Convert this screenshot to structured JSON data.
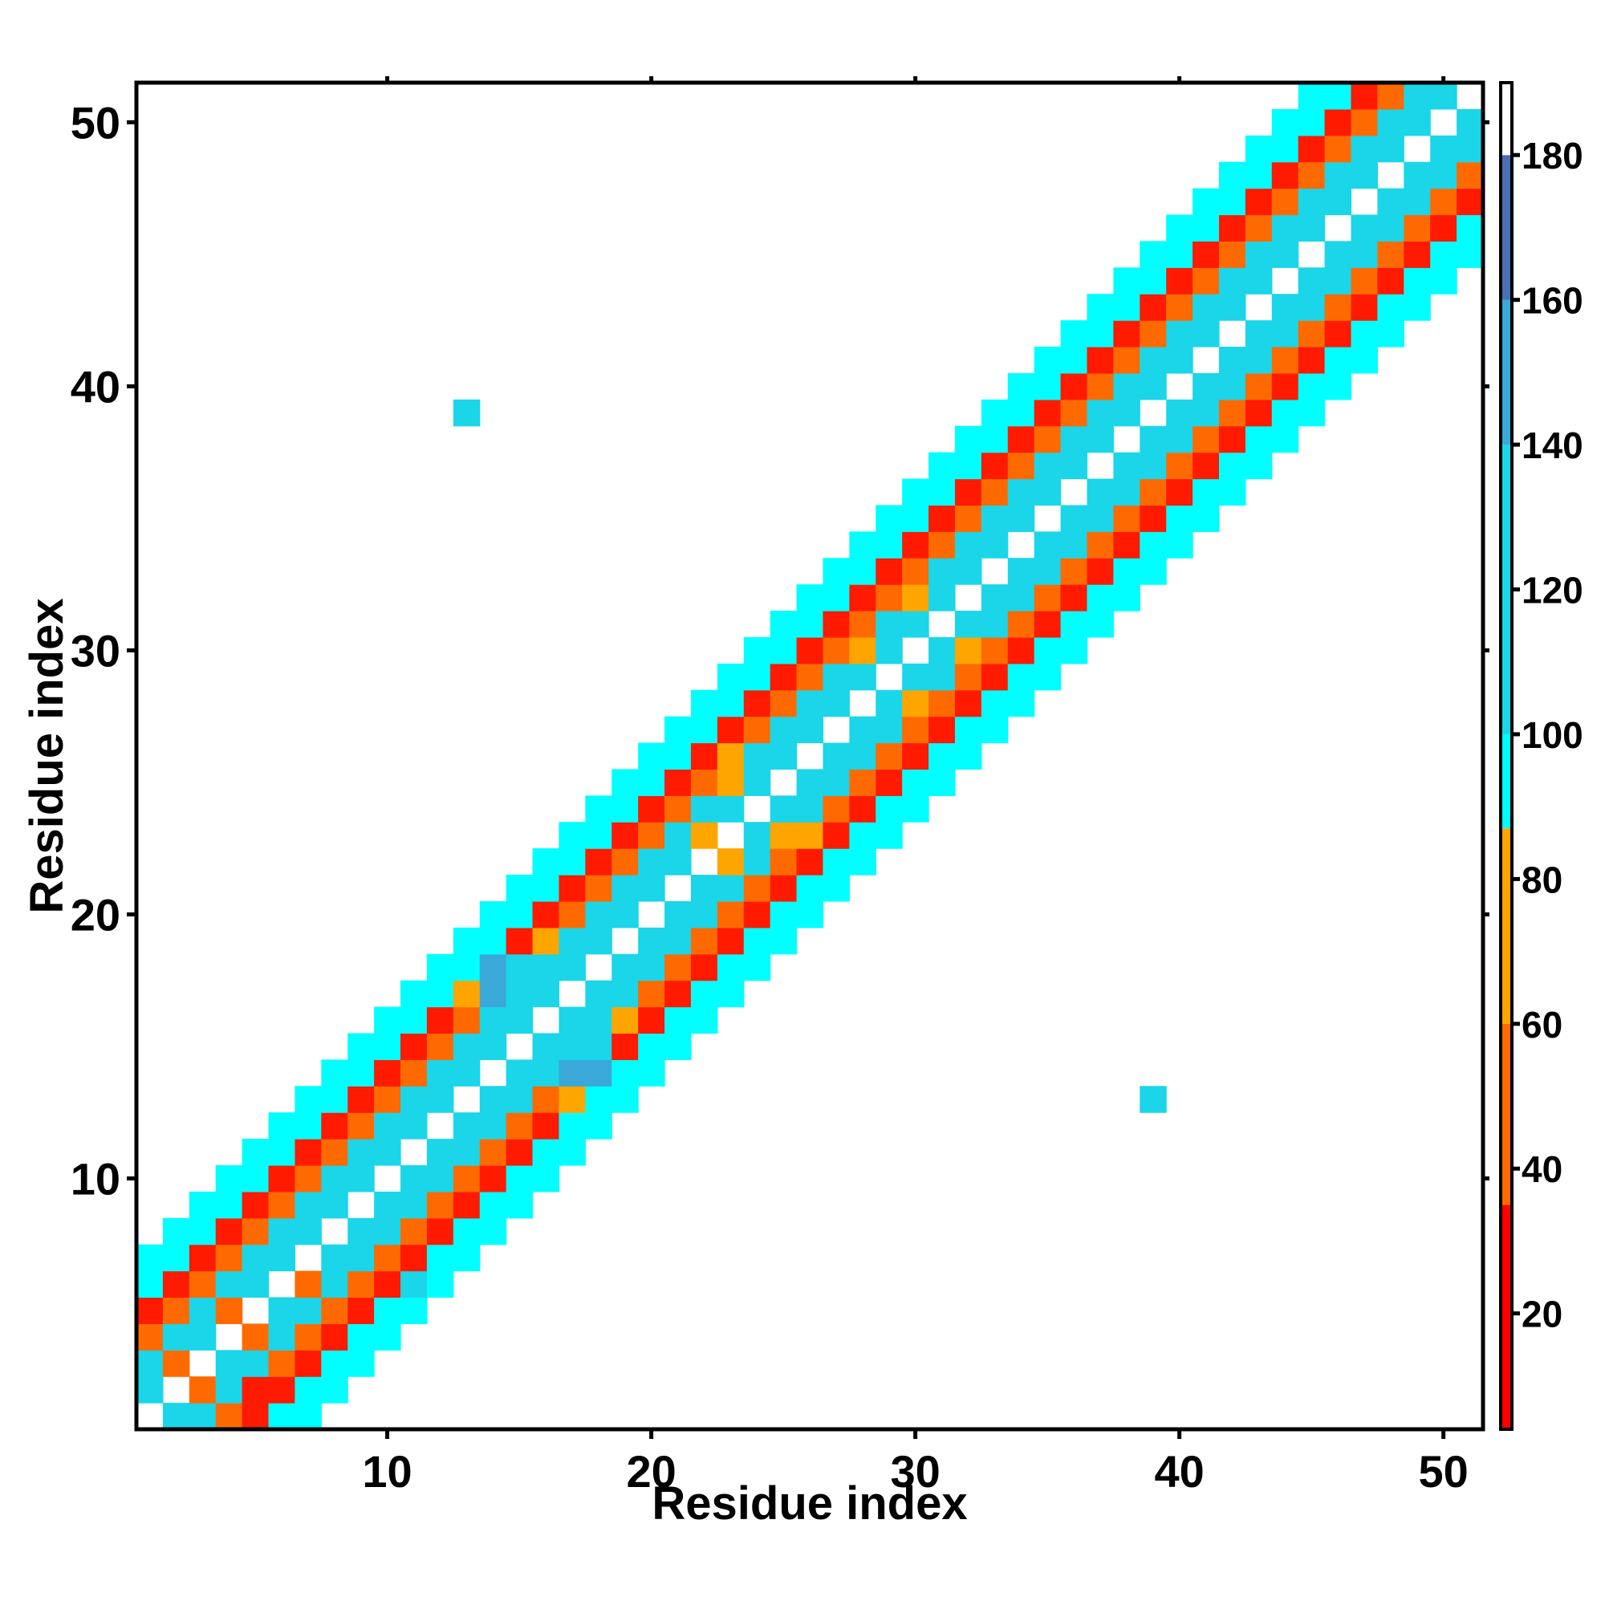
{
  "chart_data": {
    "type": "heatmap",
    "title": "",
    "xlabel": "Residue index",
    "ylabel": "Residue index",
    "xlim": [
      0.5,
      51.5
    ],
    "ylim": [
      0.5,
      51.5
    ],
    "x_ticks": [
      "10",
      "20",
      "30",
      "40",
      "50"
    ],
    "y_ticks": [
      "10",
      "20",
      "30",
      "40",
      "50"
    ],
    "colorbar": {
      "ticks": [
        "20",
        "40",
        "60",
        "80",
        "100",
        "120",
        "140",
        "160",
        "180"
      ],
      "range": [
        4,
        190
      ],
      "bands": [
        {
          "from": 4,
          "to": 35,
          "color": "#ff0000"
        },
        {
          "from": 35,
          "to": 60,
          "color": "#ff6a00"
        },
        {
          "from": 60,
          "to": 87,
          "color": "#ffa500"
        },
        {
          "from": 87,
          "to": 100,
          "color": "#00ffff"
        },
        {
          "from": 100,
          "to": 140,
          "color": "#1ad6e8"
        },
        {
          "from": 140,
          "to": 160,
          "color": "#3aa8d8"
        },
        {
          "from": 160,
          "to": 180,
          "color": "#4a6fb5"
        },
        {
          "from": 180,
          "to": 190,
          "color": "#ffffff"
        }
      ]
    },
    "colors": {
      "white": "#ffffff",
      "red": "#ff1a00",
      "orange": "#ff6a00",
      "amber": "#ffa500",
      "teal": "#1ad6e8",
      "cyan": "#00ffff",
      "blue": "#3aa8d8"
    },
    "note_cells": "z values approximate angular distance; W = off-band/self (~180), R ~ 20, O ~ 45, A ~ 75, C ~ 95, T ~ 115, B ~ 150",
    "diagonal_offset_to_code": {
      "0": "W",
      "1": "T",
      "2": "T",
      "3": "O",
      "4": "R",
      "5": "C",
      "6": "C"
    },
    "cells": [
      {
        "x": 1,
        "y": 1,
        "v": "W"
      },
      {
        "x": 2,
        "y": 1,
        "v": "T"
      },
      {
        "x": 3,
        "y": 1,
        "v": "T"
      },
      {
        "x": 4,
        "y": 1,
        "v": "O"
      },
      {
        "x": 5,
        "y": 1,
        "v": "R"
      },
      {
        "x": 6,
        "y": 1,
        "v": "C"
      },
      {
        "x": 1,
        "y": 2,
        "v": "T"
      },
      {
        "x": 2,
        "y": 2,
        "v": "W"
      },
      {
        "x": 3,
        "y": 2,
        "v": "O"
      },
      {
        "x": 4,
        "y": 2,
        "v": "T"
      },
      {
        "x": 5,
        "y": 2,
        "v": "R"
      },
      {
        "x": 6,
        "y": 2,
        "v": "R"
      },
      {
        "x": 7,
        "y": 2,
        "v": "C"
      },
      {
        "x": 1,
        "y": 3,
        "v": "T"
      },
      {
        "x": 2,
        "y": 3,
        "v": "O"
      },
      {
        "x": 3,
        "y": 3,
        "v": "W"
      },
      {
        "x": 4,
        "y": 3,
        "v": "T"
      },
      {
        "x": 5,
        "y": 3,
        "v": "T"
      },
      {
        "x": 6,
        "y": 3,
        "v": "O"
      },
      {
        "x": 7,
        "y": 3,
        "v": "R"
      },
      {
        "x": 8,
        "y": 3,
        "v": "C"
      },
      {
        "x": 1,
        "y": 4,
        "v": "O"
      },
      {
        "x": 2,
        "y": 4,
        "v": "T"
      },
      {
        "x": 3,
        "y": 4,
        "v": "T"
      },
      {
        "x": 4,
        "y": 4,
        "v": "W"
      },
      {
        "x": 5,
        "y": 4,
        "v": "O"
      },
      {
        "x": 6,
        "y": 4,
        "v": "T"
      },
      {
        "x": 7,
        "y": 4,
        "v": "O"
      },
      {
        "x": 8,
        "y": 4,
        "v": "R"
      },
      {
        "x": 9,
        "y": 4,
        "v": "C"
      },
      {
        "x": 10,
        "y": 4,
        "v": "C"
      },
      {
        "x": 1,
        "y": 5,
        "v": "R"
      },
      {
        "x": 2,
        "y": 5,
        "v": "O"
      },
      {
        "x": 3,
        "y": 5,
        "v": "T"
      },
      {
        "x": 4,
        "y": 5,
        "v": "O"
      },
      {
        "x": 5,
        "y": 5,
        "v": "W"
      },
      {
        "x": 6,
        "y": 5,
        "v": "T"
      },
      {
        "x": 7,
        "y": 5,
        "v": "T"
      },
      {
        "x": 8,
        "y": 5,
        "v": "O"
      },
      {
        "x": 9,
        "y": 5,
        "v": "R"
      },
      {
        "x": 10,
        "y": 5,
        "v": "C"
      },
      {
        "x": 11,
        "y": 5,
        "v": "C"
      },
      {
        "x": 1,
        "y": 6,
        "v": "C"
      },
      {
        "x": 2,
        "y": 6,
        "v": "R"
      },
      {
        "x": 3,
        "y": 6,
        "v": "O"
      },
      {
        "x": 4,
        "y": 6,
        "v": "T"
      },
      {
        "x": 5,
        "y": 6,
        "v": "T"
      },
      {
        "x": 6,
        "y": 6,
        "v": "W"
      },
      {
        "x": 7,
        "y": 6,
        "v": "O"
      },
      {
        "x": 8,
        "y": 6,
        "v": "T"
      },
      {
        "x": 9,
        "y": 6,
        "v": "O"
      },
      {
        "x": 10,
        "y": 6,
        "v": "R"
      },
      {
        "x": 11,
        "y": 6,
        "v": "T"
      }
    ]
  }
}
